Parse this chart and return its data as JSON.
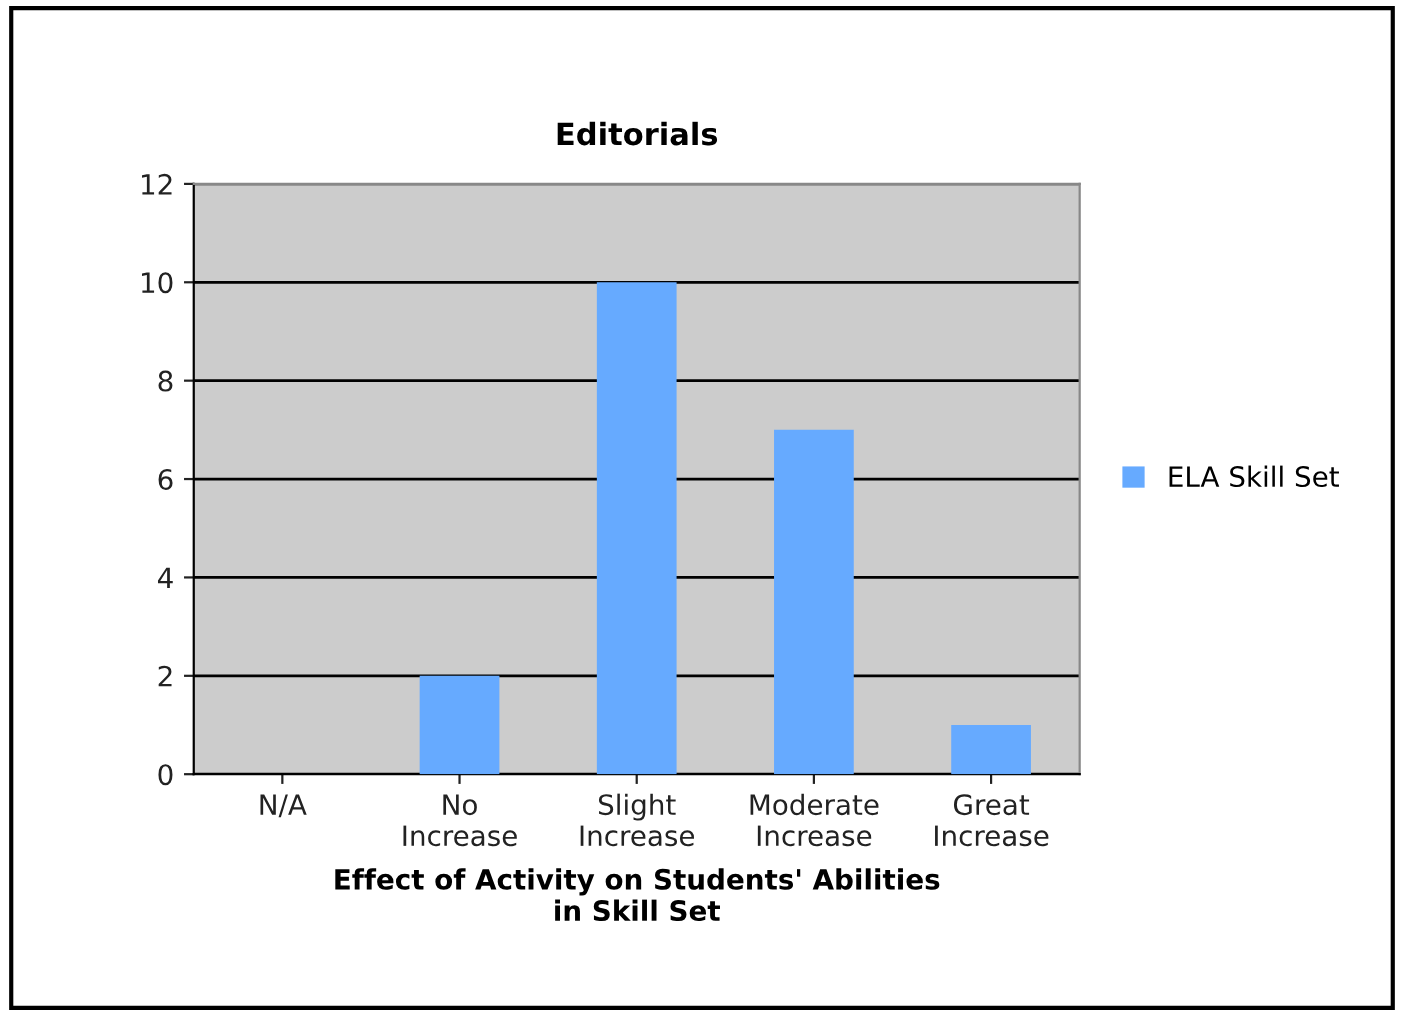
{
  "chart_data": {
    "type": "bar",
    "title": "Editorials",
    "xlabel": "Effect of Activity on Students' Abilities\nin Skill Set",
    "categories": [
      "N/A",
      "No\nIncrease",
      "Slight\nIncrease",
      "Moderate\nIncrease",
      "Great\nIncrease"
    ],
    "series": [
      {
        "name": "ELA Skill Set",
        "color": "#66aaff",
        "values": [
          0,
          2,
          10,
          7,
          1
        ]
      }
    ],
    "ylim": [
      0,
      12
    ],
    "yticks": [
      0,
      2,
      4,
      6,
      8,
      10,
      12
    ],
    "grid": "y",
    "legend": "right"
  }
}
